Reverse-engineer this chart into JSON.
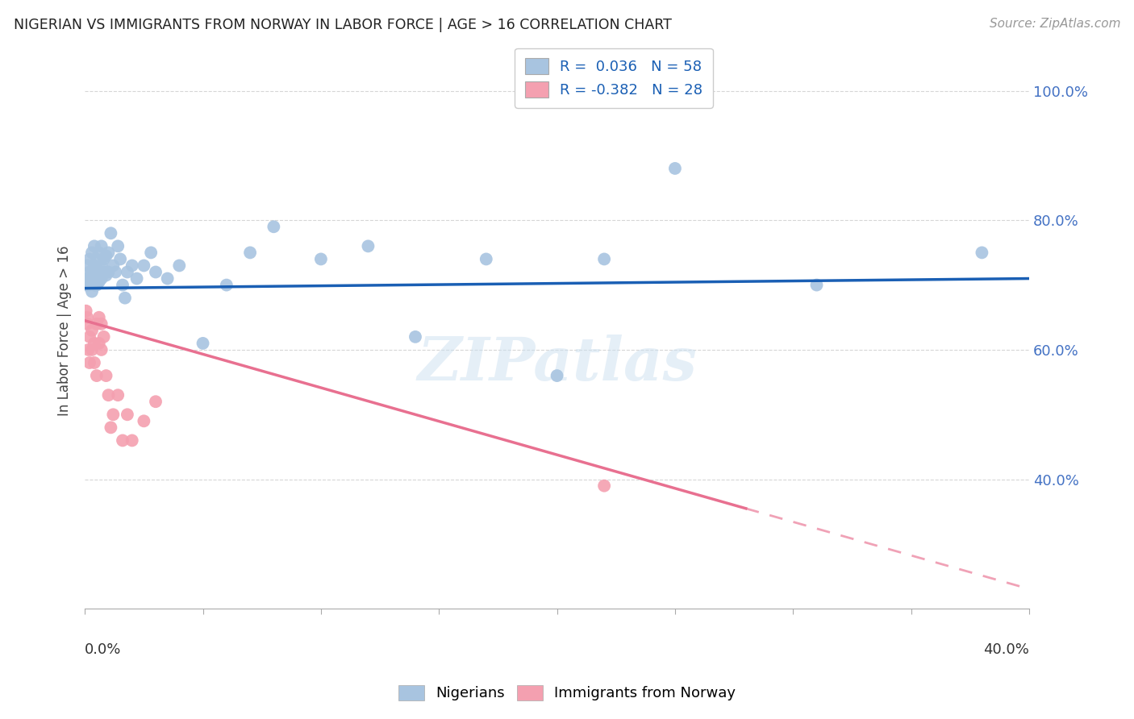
{
  "title": "NIGERIAN VS IMMIGRANTS FROM NORWAY IN LABOR FORCE | AGE > 16 CORRELATION CHART",
  "source": "Source: ZipAtlas.com",
  "ylabel": "In Labor Force | Age > 16",
  "x_range": [
    0.0,
    0.4
  ],
  "y_range": [
    0.2,
    1.06
  ],
  "blue_color": "#a8c4e0",
  "pink_color": "#f4a0b0",
  "blue_line_color": "#1a5fb4",
  "pink_line_color": "#e87090",
  "watermark": "ZIPatlas",
  "nigerians_x": [
    0.0005,
    0.001,
    0.001,
    0.0015,
    0.002,
    0.002,
    0.0025,
    0.003,
    0.003,
    0.003,
    0.004,
    0.004,
    0.004,
    0.004,
    0.005,
    0.005,
    0.005,
    0.005,
    0.006,
    0.006,
    0.006,
    0.007,
    0.007,
    0.007,
    0.008,
    0.008,
    0.009,
    0.009,
    0.01,
    0.01,
    0.011,
    0.012,
    0.013,
    0.014,
    0.015,
    0.016,
    0.017,
    0.018,
    0.02,
    0.022,
    0.025,
    0.028,
    0.03,
    0.035,
    0.04,
    0.05,
    0.06,
    0.07,
    0.08,
    0.1,
    0.12,
    0.14,
    0.17,
    0.2,
    0.22,
    0.25,
    0.31,
    0.38
  ],
  "nigerians_y": [
    0.7,
    0.71,
    0.73,
    0.7,
    0.72,
    0.74,
    0.71,
    0.69,
    0.72,
    0.75,
    0.7,
    0.71,
    0.73,
    0.76,
    0.7,
    0.715,
    0.725,
    0.74,
    0.705,
    0.72,
    0.75,
    0.71,
    0.73,
    0.76,
    0.72,
    0.74,
    0.715,
    0.745,
    0.72,
    0.75,
    0.78,
    0.73,
    0.72,
    0.76,
    0.74,
    0.7,
    0.68,
    0.72,
    0.73,
    0.71,
    0.73,
    0.75,
    0.72,
    0.71,
    0.73,
    0.61,
    0.7,
    0.75,
    0.79,
    0.74,
    0.76,
    0.62,
    0.74,
    0.56,
    0.74,
    0.88,
    0.7,
    0.75
  ],
  "norway_x": [
    0.0005,
    0.001,
    0.001,
    0.0015,
    0.002,
    0.002,
    0.003,
    0.003,
    0.004,
    0.004,
    0.005,
    0.005,
    0.006,
    0.006,
    0.007,
    0.007,
    0.008,
    0.009,
    0.01,
    0.011,
    0.012,
    0.014,
    0.016,
    0.018,
    0.02,
    0.025,
    0.03,
    0.22
  ],
  "norway_y": [
    0.66,
    0.65,
    0.64,
    0.6,
    0.62,
    0.58,
    0.6,
    0.63,
    0.61,
    0.58,
    0.56,
    0.64,
    0.65,
    0.61,
    0.64,
    0.6,
    0.62,
    0.56,
    0.53,
    0.48,
    0.5,
    0.53,
    0.46,
    0.5,
    0.46,
    0.49,
    0.52,
    0.39
  ]
}
